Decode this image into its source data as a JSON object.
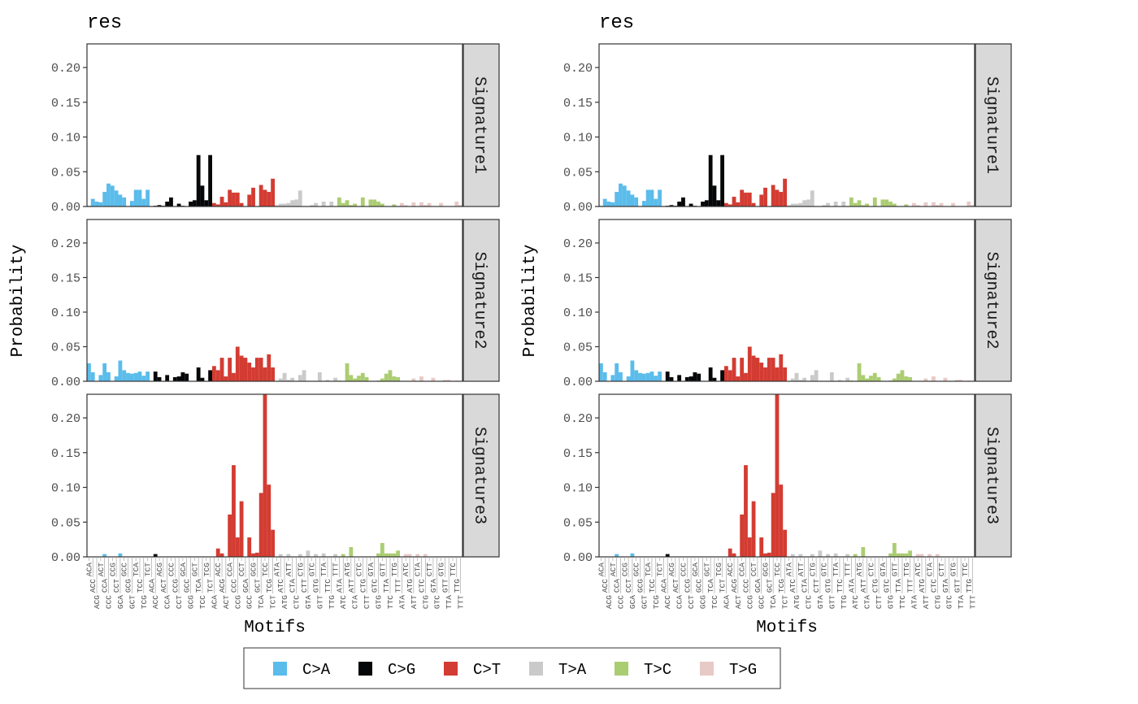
{
  "chart_data": {
    "type": "bar",
    "plots": [
      {
        "title": "res",
        "xlabel": "Motifs",
        "ylabel": "Probability"
      },
      {
        "title": "res",
        "xlabel": "Motifs",
        "ylabel": "Probability"
      }
    ],
    "ylim": [
      0,
      0.234
    ],
    "y_ticks": [
      0,
      0.05,
      0.1,
      0.15,
      0.2
    ],
    "y_tick_labels": [
      "0.00",
      "0.05",
      "0.10",
      "0.15",
      "0.20"
    ],
    "grid": false,
    "legend_position": "bottom",
    "mutation_types": [
      "C>A",
      "C>G",
      "C>T",
      "T>A",
      "T>C",
      "T>G"
    ],
    "colors": {
      "C>A": "#5ABCEB",
      "C>G": "#050708",
      "C>T": "#D33C32",
      "T>A": "#CBCACB",
      "T>C": "#ABCD72",
      "T>G": "#E7C9C6"
    },
    "x_labels": [
      "ACA",
      "ACC",
      "ACG",
      "ACT",
      "CCA",
      "CCC",
      "CCG",
      "CCT",
      "GCA",
      "GCC",
      "GCG",
      "GCT",
      "TCA",
      "TCC",
      "TCG",
      "TCT",
      "ACA",
      "ACC",
      "ACG",
      "ACT",
      "CCA",
      "CCC",
      "CCG",
      "CCT",
      "GCA",
      "GCC",
      "GCG",
      "GCT",
      "TCA",
      "TCC",
      "TCG",
      "TCT",
      "ACA",
      "ACC",
      "ACG",
      "ACT",
      "CCA",
      "CCC",
      "CCG",
      "CCT",
      "GCA",
      "GCC",
      "GCG",
      "GCT",
      "TCA",
      "TCC",
      "TCG",
      "TCT",
      "ATA",
      "ATC",
      "ATG",
      "ATT",
      "CTA",
      "CTC",
      "CTG",
      "CTT",
      "GTA",
      "GTC",
      "GTG",
      "GTT",
      "TTA",
      "TTC",
      "TTG",
      "TTT",
      "ATA",
      "ATC",
      "ATG",
      "ATT",
      "CTA",
      "CTC",
      "CTG",
      "CTT",
      "GTA",
      "GTC",
      "GTG",
      "GTT",
      "TTA",
      "TTC",
      "TTG",
      "TTT",
      "ATA",
      "ATC",
      "ATG",
      "ATT",
      "CTA",
      "CTC",
      "CTG",
      "CTT",
      "GTA",
      "GTC",
      "GTG",
      "GTT",
      "TTA",
      "TTC",
      "TTG",
      "TTT"
    ],
    "signatures": [
      {
        "name": "Signature1",
        "values": {
          "C>A": [
            0.001,
            0.011,
            0.007,
            0.006,
            0.021,
            0.033,
            0.03,
            0.023,
            0.017,
            0.013,
            0,
            0.008,
            0.024,
            0.024,
            0.011,
            0.024
          ],
          "C>G": [
            0,
            0.001,
            0.002,
            0.001,
            0.007,
            0.013,
            0,
            0.004,
            0.001,
            0,
            0.007,
            0.009,
            0.074,
            0.03,
            0.009,
            0.074
          ],
          "C>T": [
            0.005,
            0.003,
            0.014,
            0.006,
            0.024,
            0.02,
            0.02,
            0.005,
            0,
            0.017,
            0.027,
            0,
            0.031,
            0.024,
            0.021,
            0.04
          ],
          "T>A": [
            0.002,
            0.004,
            0.004,
            0.005,
            0.009,
            0.01,
            0.023,
            0,
            0,
            0.002,
            0.005,
            0,
            0.007,
            0,
            0.007,
            0
          ],
          "T>C": [
            0.013,
            0.005,
            0.009,
            0.002,
            0.004,
            0,
            0.013,
            0,
            0.01,
            0.01,
            0.007,
            0.004,
            0,
            0,
            0.003,
            0
          ],
          "T>G": [
            0.005,
            0.002,
            0,
            0.006,
            0,
            0.006,
            0.002,
            0.005,
            0,
            0,
            0.005,
            0,
            0,
            0,
            0.007,
            0.002
          ]
        }
      },
      {
        "name": "Signature2",
        "values": {
          "C>A": [
            0.026,
            0.013,
            0,
            0.009,
            0.026,
            0.013,
            0,
            0.007,
            0.03,
            0.016,
            0.012,
            0.011,
            0.012,
            0.014,
            0.008,
            0.014
          ],
          "C>G": [
            0,
            0.014,
            0.006,
            0,
            0.009,
            0,
            0.006,
            0.007,
            0.013,
            0.011,
            0,
            0,
            0.02,
            0.005,
            0,
            0.016
          ],
          "C>T": [
            0.022,
            0.016,
            0.034,
            0.007,
            0.034,
            0.012,
            0.05,
            0.037,
            0.034,
            0.027,
            0.02,
            0.034,
            0.034,
            0.02,
            0.039,
            0.02
          ],
          "T>A": [
            0,
            0.004,
            0.012,
            0.002,
            0.005,
            0,
            0.009,
            0.016,
            0,
            0,
            0,
            0.013,
            0,
            0.002,
            0,
            0.005
          ],
          "T>C": [
            0.001,
            0,
            0.026,
            0.009,
            0.004,
            0.008,
            0.012,
            0.006,
            0,
            0,
            0.001,
            0.004,
            0.011,
            0.016,
            0.007,
            0.006
          ],
          "T>G": [
            0,
            0,
            0,
            0.004,
            0,
            0.007,
            0,
            0,
            0.005,
            0,
            0,
            0.002,
            0.002,
            0,
            0.001,
            0
          ]
        }
      },
      {
        "name": "Signature3",
        "values": {
          "C>A": [
            0,
            0,
            0,
            0,
            0.004,
            0,
            0,
            0,
            0.005,
            0,
            0,
            0,
            0,
            0,
            0,
            0
          ],
          "C>G": [
            0,
            0.004,
            0,
            0,
            0,
            0,
            0,
            0,
            0,
            0,
            0,
            0,
            0,
            0,
            0,
            0
          ],
          "C>T": [
            0,
            0.012,
            0.005,
            0,
            0.061,
            0.132,
            0.028,
            0.08,
            0,
            0.028,
            0.005,
            0.006,
            0.092,
            0.234,
            0.104,
            0.039
          ],
          "T>A": [
            0,
            0.004,
            0,
            0.004,
            0,
            0,
            0.004,
            0,
            0.009,
            0,
            0.004,
            0,
            0.005,
            0,
            0,
            0.004
          ],
          "T>C": [
            0,
            0.004,
            0,
            0.014,
            0,
            0,
            0,
            0,
            0,
            0,
            0.005,
            0.02,
            0.005,
            0.005,
            0.005,
            0.009
          ],
          "T>G": [
            0,
            0.004,
            0.004,
            0,
            0.004,
            0,
            0.004,
            0,
            0,
            0,
            0,
            0,
            0,
            0,
            0,
            0
          ]
        }
      }
    ]
  }
}
